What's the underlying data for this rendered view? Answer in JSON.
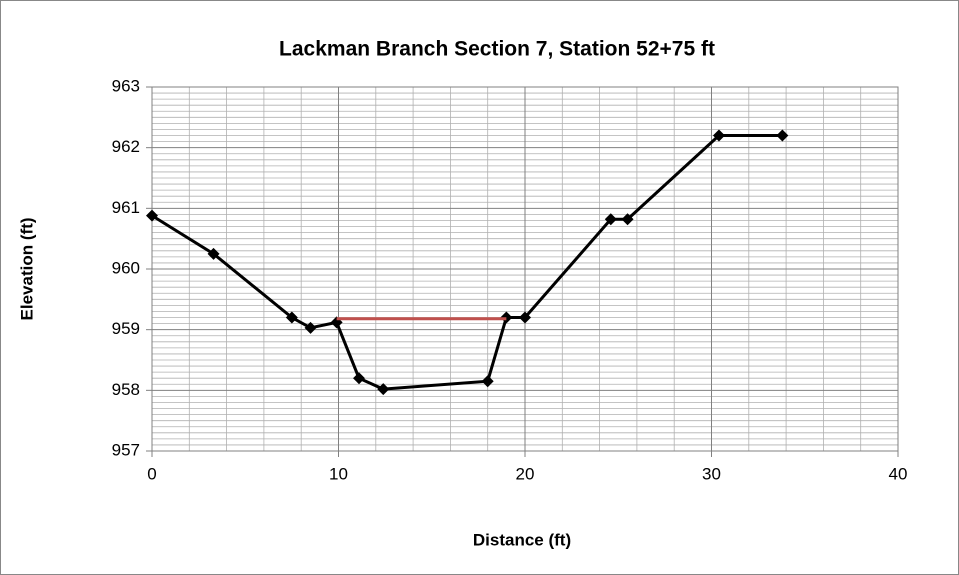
{
  "chart_data": {
    "type": "scatter",
    "title": "Lackman Branch Section 7, Station 52+75 ft",
    "x_label": "Distance (ft)",
    "y_label": "Elevation (ft)",
    "series": [
      {
        "color": "#000000",
        "marker": "diamond",
        "x": [
          0,
          3.3,
          7.5,
          8.5,
          9.9,
          11.1,
          12.4,
          18,
          19,
          20,
          24.6,
          25.5,
          30.4,
          33.8
        ],
        "values": [
          960.88,
          960.25,
          959.2,
          959.03,
          959.12,
          958.2,
          958.02,
          958.15,
          959.2,
          959.2,
          960.82,
          960.82,
          962.2,
          962.2
        ]
      },
      {
        "color": "#c0504d",
        "x": [
          9.9,
          19
        ],
        "values": [
          959.18,
          959.18
        ]
      }
    ],
    "xlim": [
      0,
      40
    ],
    "xticks": [
      0,
      10,
      20,
      30,
      40
    ],
    "ylim": [
      957,
      963
    ],
    "yticks": [
      957,
      958,
      959,
      960,
      961,
      962,
      963
    ],
    "grid": true
  }
}
